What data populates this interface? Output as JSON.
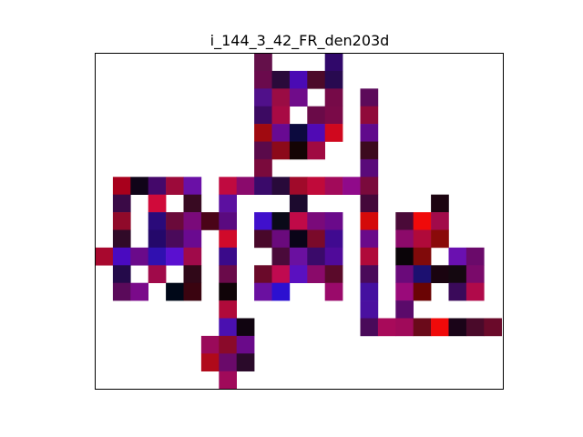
{
  "chart_data": {
    "type": "heatmap",
    "title": "i_144_3_42_FR_den203d",
    "xlabel": "",
    "ylabel": "",
    "grid": false,
    "axes_ticks": false,
    "background": "#ffffff",
    "cells": [
      {
        "row": 0,
        "col": 9,
        "color": "#64104a"
      },
      {
        "row": 0,
        "col": 13,
        "color": "#30086a"
      },
      {
        "row": 1,
        "col": 9,
        "color": "#6a0a4c"
      },
      {
        "row": 1,
        "col": 10,
        "color": "#2a0a3a"
      },
      {
        "row": 1,
        "col": 11,
        "color": "#4a0ab4"
      },
      {
        "row": 1,
        "col": 12,
        "color": "#4c0a2a"
      },
      {
        "row": 1,
        "col": 13,
        "color": "#280a50"
      },
      {
        "row": 2,
        "col": 9,
        "color": "#50108a"
      },
      {
        "row": 2,
        "col": 10,
        "color": "#9a0c44"
      },
      {
        "row": 2,
        "col": 11,
        "color": "#700c8a"
      },
      {
        "row": 2,
        "col": 13,
        "color": "#760a48"
      },
      {
        "row": 2,
        "col": 15,
        "color": "#5c0a5a"
      },
      {
        "row": 3,
        "col": 9,
        "color": "#3c0a62"
      },
      {
        "row": 3,
        "col": 10,
        "color": "#a80a44"
      },
      {
        "row": 3,
        "col": 12,
        "color": "#6a0a48"
      },
      {
        "row": 3,
        "col": 13,
        "color": "#7a0a48"
      },
      {
        "row": 3,
        "col": 15,
        "color": "#900a3a"
      },
      {
        "row": 4,
        "col": 9,
        "color": "#a00a10"
      },
      {
        "row": 4,
        "col": 10,
        "color": "#680a92"
      },
      {
        "row": 4,
        "col": 11,
        "color": "#0c0a3e"
      },
      {
        "row": 4,
        "col": 12,
        "color": "#500ab4"
      },
      {
        "row": 4,
        "col": 13,
        "color": "#d0081e"
      },
      {
        "row": 4,
        "col": 15,
        "color": "#600a8c"
      },
      {
        "row": 5,
        "col": 9,
        "color": "#5a0a4a"
      },
      {
        "row": 5,
        "col": 10,
        "color": "#8c0a1a"
      },
      {
        "row": 5,
        "col": 11,
        "color": "#140404"
      },
      {
        "row": 5,
        "col": 12,
        "color": "#a00a42"
      },
      {
        "row": 5,
        "col": 15,
        "color": "#3c0a1e"
      },
      {
        "row": 6,
        "col": 9,
        "color": "#7a0a3c"
      },
      {
        "row": 6,
        "col": 15,
        "color": "#5a0a7a"
      },
      {
        "row": 7,
        "col": 1,
        "color": "#a8001c"
      },
      {
        "row": 7,
        "col": 2,
        "color": "#100418"
      },
      {
        "row": 7,
        "col": 3,
        "color": "#44086a"
      },
      {
        "row": 7,
        "col": 4,
        "color": "#9c0a3a"
      },
      {
        "row": 7,
        "col": 5,
        "color": "#6a10a6"
      },
      {
        "row": 7,
        "col": 7,
        "color": "#c00a40"
      },
      {
        "row": 7,
        "col": 8,
        "color": "#8a0a6c"
      },
      {
        "row": 7,
        "col": 9,
        "color": "#3a0a6a"
      },
      {
        "row": 7,
        "col": 10,
        "color": "#280a3a"
      },
      {
        "row": 7,
        "col": 11,
        "color": "#a00a2a"
      },
      {
        "row": 7,
        "col": 12,
        "color": "#c00a3a"
      },
      {
        "row": 7,
        "col": 13,
        "color": "#a20a5a"
      },
      {
        "row": 7,
        "col": 14,
        "color": "#900a8a"
      },
      {
        "row": 7,
        "col": 15,
        "color": "#7a0a3c"
      },
      {
        "row": 8,
        "col": 1,
        "color": "#3a0a46"
      },
      {
        "row": 8,
        "col": 3,
        "color": "#d00a3a"
      },
      {
        "row": 8,
        "col": 5,
        "color": "#380a22"
      },
      {
        "row": 8,
        "col": 7,
        "color": "#5c10a0"
      },
      {
        "row": 8,
        "col": 11,
        "color": "#1c0a2e"
      },
      {
        "row": 8,
        "col": 15,
        "color": "#44083a"
      },
      {
        "row": 8,
        "col": 19,
        "color": "#1c0410"
      },
      {
        "row": 9,
        "col": 1,
        "color": "#900a2a"
      },
      {
        "row": 9,
        "col": 3,
        "color": "#2a0a7a"
      },
      {
        "row": 9,
        "col": 4,
        "color": "#6a0a3a"
      },
      {
        "row": 9,
        "col": 5,
        "color": "#7a0a7a"
      },
      {
        "row": 9,
        "col": 6,
        "color": "#4a0418"
      },
      {
        "row": 9,
        "col": 7,
        "color": "#5a0a80"
      },
      {
        "row": 9,
        "col": 9,
        "color": "#4010cc"
      },
      {
        "row": 9,
        "col": 10,
        "color": "#0a0a18"
      },
      {
        "row": 9,
        "col": 11,
        "color": "#c00a48"
      },
      {
        "row": 9,
        "col": 12,
        "color": "#7a0a7a"
      },
      {
        "row": 9,
        "col": 13,
        "color": "#6a0a8a"
      },
      {
        "row": 9,
        "col": 15,
        "color": "#d40a0a"
      },
      {
        "row": 9,
        "col": 17,
        "color": "#4a0a38"
      },
      {
        "row": 9,
        "col": 18,
        "color": "#f00a0a"
      },
      {
        "row": 9,
        "col": 19,
        "color": "#a20a4a"
      },
      {
        "row": 10,
        "col": 1,
        "color": "#300a28"
      },
      {
        "row": 10,
        "col": 3,
        "color": "#24086a"
      },
      {
        "row": 10,
        "col": 4,
        "color": "#4a0a5a"
      },
      {
        "row": 10,
        "col": 5,
        "color": "#6a0a90"
      },
      {
        "row": 10,
        "col": 7,
        "color": "#d00a2a"
      },
      {
        "row": 10,
        "col": 9,
        "color": "#48082a"
      },
      {
        "row": 10,
        "col": 10,
        "color": "#6a0a7c"
      },
      {
        "row": 10,
        "col": 11,
        "color": "#0a0418"
      },
      {
        "row": 10,
        "col": 12,
        "color": "#7a0a2a"
      },
      {
        "row": 10,
        "col": 13,
        "color": "#400a90"
      },
      {
        "row": 10,
        "col": 15,
        "color": "#6a0a8a"
      },
      {
        "row": 10,
        "col": 17,
        "color": "#8c0a6a"
      },
      {
        "row": 10,
        "col": 18,
        "color": "#b00a3a"
      },
      {
        "row": 10,
        "col": 19,
        "color": "#8a0a0a"
      },
      {
        "row": 11,
        "col": 0,
        "color": "#a8082e"
      },
      {
        "row": 11,
        "col": 1,
        "color": "#4a0ac0"
      },
      {
        "row": 11,
        "col": 2,
        "color": "#6a0a8a"
      },
      {
        "row": 11,
        "col": 3,
        "color": "#3010b0"
      },
      {
        "row": 11,
        "col": 4,
        "color": "#5a10d0"
      },
      {
        "row": 11,
        "col": 5,
        "color": "#a00a4a"
      },
      {
        "row": 11,
        "col": 7,
        "color": "#3a0a8a"
      },
      {
        "row": 11,
        "col": 10,
        "color": "#4a0a3a"
      },
      {
        "row": 11,
        "col": 11,
        "color": "#6a10a0"
      },
      {
        "row": 11,
        "col": 12,
        "color": "#3a0a6a"
      },
      {
        "row": 11,
        "col": 13,
        "color": "#500a9a"
      },
      {
        "row": 11,
        "col": 15,
        "color": "#b00a3a"
      },
      {
        "row": 11,
        "col": 17,
        "color": "#0a0408"
      },
      {
        "row": 11,
        "col": 18,
        "color": "#800a0a"
      },
      {
        "row": 11,
        "col": 20,
        "color": "#6a10b0"
      },
      {
        "row": 11,
        "col": 21,
        "color": "#6a0a6a"
      },
      {
        "row": 12,
        "col": 1,
        "color": "#240a4a"
      },
      {
        "row": 12,
        "col": 3,
        "color": "#a00a4a"
      },
      {
        "row": 12,
        "col": 5,
        "color": "#300818"
      },
      {
        "row": 12,
        "col": 7,
        "color": "#6a0a4a"
      },
      {
        "row": 12,
        "col": 9,
        "color": "#6a0a2a"
      },
      {
        "row": 12,
        "col": 10,
        "color": "#c00a50"
      },
      {
        "row": 12,
        "col": 11,
        "color": "#5a10c0"
      },
      {
        "row": 12,
        "col": 12,
        "color": "#8a0a6a"
      },
      {
        "row": 12,
        "col": 13,
        "color": "#5a0a2a"
      },
      {
        "row": 12,
        "col": 15,
        "color": "#4a0a5a"
      },
      {
        "row": 12,
        "col": 17,
        "color": "#6a0a7a"
      },
      {
        "row": 12,
        "col": 18,
        "color": "#1c1070"
      },
      {
        "row": 12,
        "col": 19,
        "color": "#1a0410"
      },
      {
        "row": 12,
        "col": 20,
        "color": "#140810"
      },
      {
        "row": 12,
        "col": 21,
        "color": "#7a0a6a"
      },
      {
        "row": 13,
        "col": 1,
        "color": "#5a0a5a"
      },
      {
        "row": 13,
        "col": 2,
        "color": "#7a0a8a"
      },
      {
        "row": 13,
        "col": 4,
        "color": "#000818"
      },
      {
        "row": 13,
        "col": 5,
        "color": "#3a0410"
      },
      {
        "row": 13,
        "col": 7,
        "color": "#100408"
      },
      {
        "row": 13,
        "col": 9,
        "color": "#6a10a0"
      },
      {
        "row": 13,
        "col": 10,
        "color": "#2c10d0"
      },
      {
        "row": 13,
        "col": 13,
        "color": "#9a0a6a"
      },
      {
        "row": 13,
        "col": 15,
        "color": "#4410a0"
      },
      {
        "row": 13,
        "col": 17,
        "color": "#9a0a7a"
      },
      {
        "row": 13,
        "col": 18,
        "color": "#6a0404"
      },
      {
        "row": 13,
        "col": 20,
        "color": "#3a0a5a"
      },
      {
        "row": 13,
        "col": 21,
        "color": "#b00a4a"
      },
      {
        "row": 14,
        "col": 7,
        "color": "#b00a3a"
      },
      {
        "row": 14,
        "col": 15,
        "color": "#4a10a0"
      },
      {
        "row": 14,
        "col": 17,
        "color": "#5a0a6a"
      },
      {
        "row": 15,
        "col": 7,
        "color": "#4a10b0"
      },
      {
        "row": 15,
        "col": 8,
        "color": "#100410"
      },
      {
        "row": 15,
        "col": 15,
        "color": "#4a0a5a"
      },
      {
        "row": 15,
        "col": 16,
        "color": "#a80a5a"
      },
      {
        "row": 15,
        "col": 17,
        "color": "#a00a5a"
      },
      {
        "row": 15,
        "col": 18,
        "color": "#6a0a1a"
      },
      {
        "row": 15,
        "col": 19,
        "color": "#f00a0a"
      },
      {
        "row": 15,
        "col": 20,
        "color": "#1a0418"
      },
      {
        "row": 15,
        "col": 21,
        "color": "#4a0a2a"
      },
      {
        "row": 15,
        "col": 22,
        "color": "#6a0a2a"
      },
      {
        "row": 16,
        "col": 6,
        "color": "#9a0a5a"
      },
      {
        "row": 16,
        "col": 7,
        "color": "#8a0a2a"
      },
      {
        "row": 16,
        "col": 8,
        "color": "#6a0a8a"
      },
      {
        "row": 17,
        "col": 6,
        "color": "#b00a1a"
      },
      {
        "row": 17,
        "col": 7,
        "color": "#6a0a6a"
      },
      {
        "row": 17,
        "col": 8,
        "color": "#2a0a2a"
      },
      {
        "row": 18,
        "col": 7,
        "color": "#a00a5a"
      }
    ]
  }
}
